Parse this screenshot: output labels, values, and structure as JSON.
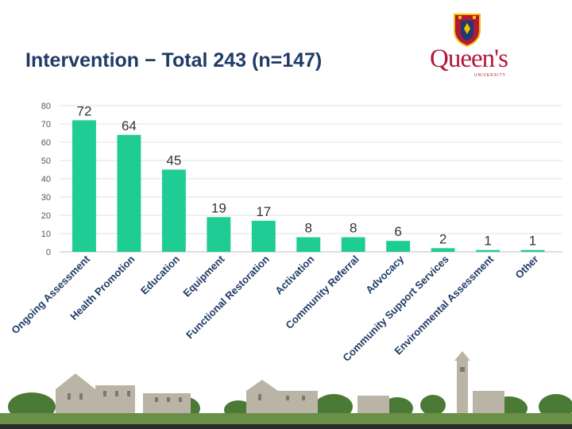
{
  "slide": {
    "title": "Intervention − Total 243 (n=147)"
  },
  "logo": {
    "wordmark": "Queen's",
    "subtitle": "UNIVERSITY",
    "primary_color": "#b3173a",
    "accent_color": "#f2c200",
    "shield_color": "#1d3b6e"
  },
  "chart_data": {
    "type": "bar",
    "title": "",
    "xlabel": "",
    "ylabel": "",
    "ylim": [
      0,
      80
    ],
    "yticks": [
      0,
      10,
      20,
      30,
      40,
      50,
      60,
      70,
      80
    ],
    "grid": true,
    "bar_color": "#1fcc94",
    "categories": [
      "Ongoing Assessment",
      "Health Promotion",
      "Education",
      "Equipment",
      "Functional Restoration",
      "Activation",
      "Community Referral",
      "Advocacy",
      "Community Support Services",
      "Environmental Assessment",
      "Other"
    ],
    "values": [
      72,
      64,
      45,
      19,
      17,
      8,
      8,
      6,
      2,
      1,
      1
    ]
  }
}
